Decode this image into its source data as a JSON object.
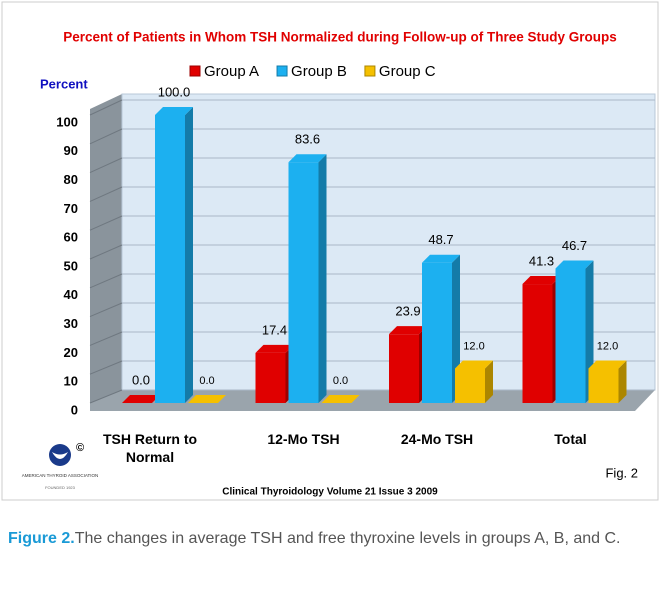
{
  "chart_data": {
    "type": "bar3d",
    "title": "Percent of Patients in Whom TSH Normalized during Follow-up  of Three Study Groups",
    "ylabel": "Percent",
    "categories": [
      "TSH Return to Normal",
      "12-Mo TSH",
      "24-Mo TSH",
      "Total"
    ],
    "series": [
      {
        "name": "Group A",
        "color": "#e00000",
        "values": [
          0.0,
          17.4,
          23.9,
          41.3
        ],
        "value_labels": [
          "0.0",
          "17.4",
          "23.9",
          "41.3"
        ]
      },
      {
        "name": "Group B",
        "color": "#1cb0f0",
        "values": [
          100.0,
          83.6,
          48.7,
          46.7
        ],
        "value_labels": [
          "100.0",
          "83.6",
          "48.7",
          "46.7"
        ]
      },
      {
        "name": "Group C",
        "color": "#f5c000",
        "values": [
          0.0,
          0.0,
          12.0,
          12.0
        ],
        "value_labels": [
          "0.0",
          "0.0",
          "12.0",
          "12.0"
        ]
      }
    ],
    "ylim": [
      0,
      100
    ],
    "yticks": [
      0,
      10,
      20,
      30,
      40,
      50,
      60,
      70,
      80,
      90,
      100
    ],
    "grid": true,
    "legend": "top",
    "fig_label": "Fig. 2",
    "source": "Clinical Thyroidology Volume 21 Issue 3 2009"
  },
  "logo": {
    "symbol": "©",
    "name": "AMERICAN THYROID ASSOCIATION",
    "founded": "FOUNDED 1923"
  },
  "caption": {
    "label": "Figure 2.",
    "text": "The changes in average TSH and free thyroxine levels in groups A, B, and C."
  }
}
